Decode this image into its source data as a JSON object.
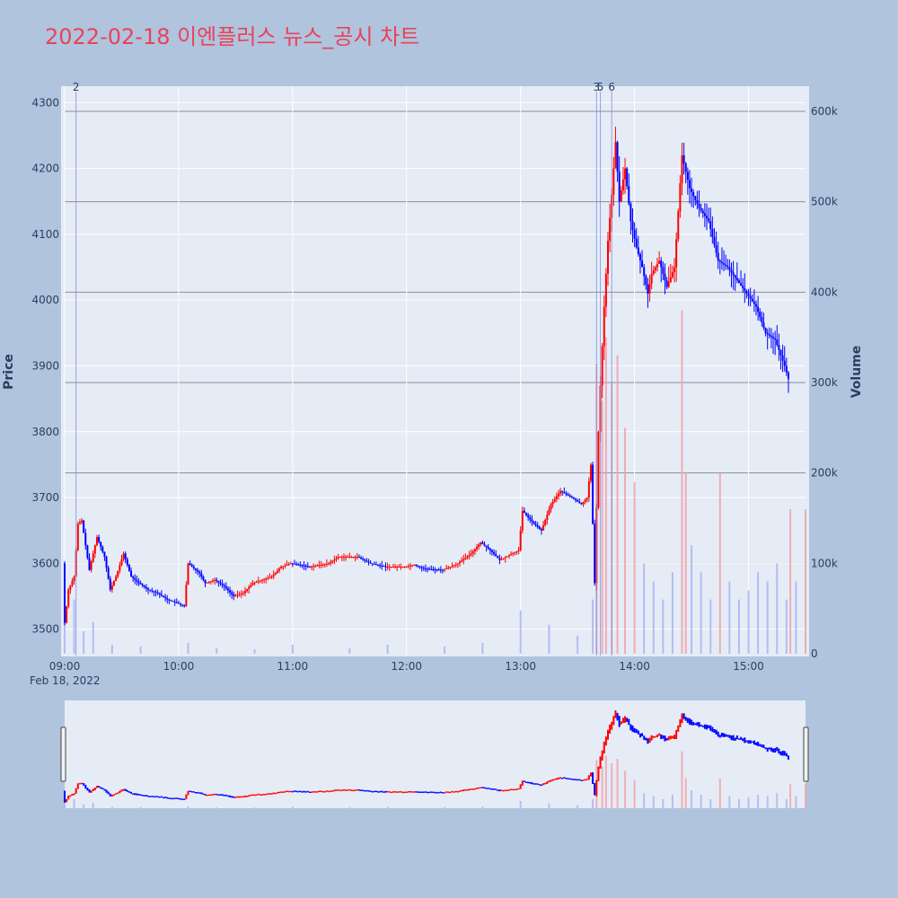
{
  "chart_data": {
    "type": "candlestick",
    "title": "2022-02-18 이엔플러스 뉴스_공시 차트",
    "ylabel": "Price",
    "y2label": "Volume",
    "x_date_label": "Feb 18, 2022",
    "x_ticks": [
      "09:00",
      "10:00",
      "11:00",
      "12:00",
      "13:00",
      "14:00",
      "15:00"
    ],
    "price_ticks": [
      "3500",
      "3600",
      "3700",
      "3800",
      "3900",
      "4000",
      "4100",
      "4200",
      "4300"
    ],
    "volume_ticks": [
      "0",
      "100k",
      "200k",
      "300k",
      "400k",
      "500k",
      "600k"
    ],
    "price_range": [
      3460,
      4325
    ],
    "volume_range": [
      0,
      600000
    ],
    "time_range_minutes": [
      540,
      930
    ],
    "up_color": "#ff0000",
    "down_color": "#0000ff",
    "legend": "none",
    "news_markers": [
      {
        "label": "2",
        "time": "09:06"
      },
      {
        "label": "3",
        "time": "13:40"
      },
      {
        "label": "5",
        "time": "13:42"
      },
      {
        "label": "6",
        "time": "13:48"
      }
    ],
    "price_path": [
      [
        "09:00",
        3600
      ],
      [
        "09:01",
        3510
      ],
      [
        "09:03",
        3560
      ],
      [
        "09:06",
        3580
      ],
      [
        "09:08",
        3660
      ],
      [
        "09:10",
        3665
      ],
      [
        "09:14",
        3590
      ],
      [
        "09:18",
        3640
      ],
      [
        "09:22",
        3610
      ],
      [
        "09:25",
        3560
      ],
      [
        "09:28",
        3580
      ],
      [
        "09:32",
        3615
      ],
      [
        "09:36",
        3580
      ],
      [
        "09:40",
        3570
      ],
      [
        "09:45",
        3560
      ],
      [
        "09:50",
        3555
      ],
      [
        "09:55",
        3545
      ],
      [
        "10:00",
        3540
      ],
      [
        "10:04",
        3535
      ],
      [
        "10:06",
        3600
      ],
      [
        "10:12",
        3585
      ],
      [
        "10:15",
        3570
      ],
      [
        "10:20",
        3575
      ],
      [
        "10:25",
        3565
      ],
      [
        "10:30",
        3550
      ],
      [
        "10:35",
        3555
      ],
      [
        "10:40",
        3570
      ],
      [
        "10:50",
        3580
      ],
      [
        "10:55",
        3595
      ],
      [
        "11:00",
        3600
      ],
      [
        "11:10",
        3595
      ],
      [
        "11:20",
        3600
      ],
      [
        "11:25",
        3610
      ],
      [
        "11:35",
        3610
      ],
      [
        "11:42",
        3600
      ],
      [
        "11:50",
        3595
      ],
      [
        "12:00",
        3595
      ],
      [
        "12:05",
        3598
      ],
      [
        "12:10",
        3592
      ],
      [
        "12:20",
        3590
      ],
      [
        "12:28",
        3600
      ],
      [
        "12:35",
        3615
      ],
      [
        "12:40",
        3632
      ],
      [
        "12:45",
        3620
      ],
      [
        "12:50",
        3605
      ],
      [
        "13:00",
        3620
      ],
      [
        "13:02",
        3680
      ],
      [
        "13:08",
        3660
      ],
      [
        "13:12",
        3650
      ],
      [
        "13:17",
        3690
      ],
      [
        "13:22",
        3710
      ],
      [
        "13:28",
        3700
      ],
      [
        "13:33",
        3690
      ],
      [
        "13:36",
        3700
      ],
      [
        "13:38",
        3750
      ],
      [
        "13:40",
        3570
      ],
      [
        "13:42",
        3800
      ],
      [
        "13:43",
        3870
      ],
      [
        "13:45",
        3990
      ],
      [
        "13:47",
        4090
      ],
      [
        "13:49",
        4160
      ],
      [
        "13:51",
        4240
      ],
      [
        "13:53",
        4150
      ],
      [
        "13:56",
        4200
      ],
      [
        "13:59",
        4120
      ],
      [
        "14:02",
        4080
      ],
      [
        "14:05",
        4050
      ],
      [
        "14:08",
        4010
      ],
      [
        "14:10",
        4040
      ],
      [
        "14:14",
        4060
      ],
      [
        "14:18",
        4020
      ],
      [
        "14:22",
        4050
      ],
      [
        "14:26",
        4220
      ],
      [
        "14:30",
        4170
      ],
      [
        "14:35",
        4140
      ],
      [
        "14:40",
        4120
      ],
      [
        "14:45",
        4060
      ],
      [
        "14:50",
        4050
      ],
      [
        "14:55",
        4030
      ],
      [
        "15:00",
        4010
      ],
      [
        "15:05",
        3990
      ],
      [
        "15:10",
        3950
      ],
      [
        "15:15",
        3940
      ],
      [
        "15:20",
        3900
      ],
      [
        "15:22",
        3880
      ]
    ],
    "volume_bars": [
      [
        "09:00",
        40000
      ],
      [
        "09:05",
        60000
      ],
      [
        "09:10",
        25000
      ],
      [
        "09:15",
        35000
      ],
      [
        "09:25",
        10000
      ],
      [
        "09:40",
        8000
      ],
      [
        "10:05",
        12000
      ],
      [
        "10:20",
        6000
      ],
      [
        "10:40",
        5000
      ],
      [
        "11:00",
        10000
      ],
      [
        "11:30",
        6000
      ],
      [
        "11:50",
        10000
      ],
      [
        "12:20",
        8000
      ],
      [
        "12:40",
        12000
      ],
      [
        "13:00",
        48000
      ],
      [
        "13:15",
        32000
      ],
      [
        "13:30",
        20000
      ],
      [
        "13:38",
        60000
      ],
      [
        "13:40",
        320000
      ],
      [
        "13:43",
        280000
      ],
      [
        "13:45",
        350000
      ],
      [
        "13:48",
        300000
      ],
      [
        "13:51",
        330000
      ],
      [
        "13:55",
        250000
      ],
      [
        "14:00",
        190000
      ],
      [
        "14:05",
        100000
      ],
      [
        "14:10",
        80000
      ],
      [
        "14:15",
        60000
      ],
      [
        "14:20",
        90000
      ],
      [
        "14:25",
        380000
      ],
      [
        "14:27",
        200000
      ],
      [
        "14:30",
        120000
      ],
      [
        "14:35",
        90000
      ],
      [
        "14:40",
        60000
      ],
      [
        "14:45",
        200000
      ],
      [
        "14:50",
        80000
      ],
      [
        "14:55",
        60000
      ],
      [
        "15:00",
        70000
      ],
      [
        "15:05",
        90000
      ],
      [
        "15:10",
        80000
      ],
      [
        "15:15",
        100000
      ],
      [
        "15:20",
        60000
      ],
      [
        "15:22",
        160000
      ],
      [
        "15:25",
        80000
      ],
      [
        "15:30",
        160000
      ]
    ]
  }
}
